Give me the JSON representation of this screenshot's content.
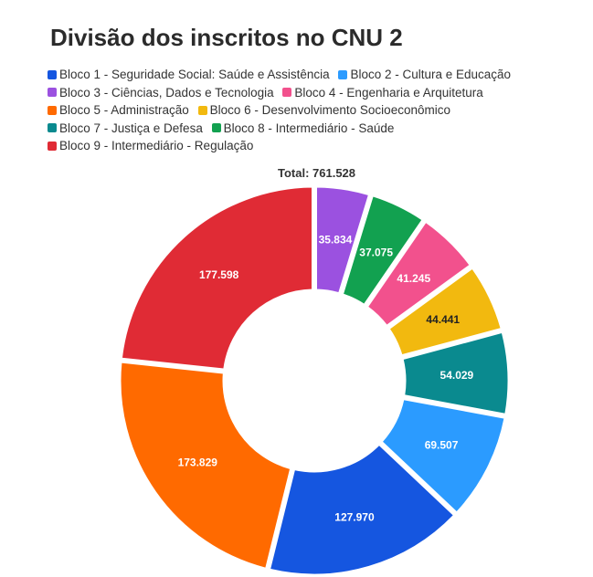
{
  "title": "Divisão dos inscritos no CNU 2",
  "total_label": "Total: 761.528",
  "chart_data": {
    "type": "pie",
    "variant": "donut",
    "title": "Divisão dos inscritos no CNU 2",
    "total": "Total: 761.528",
    "legend_position": "top",
    "slices": [
      {
        "name": "Bloco 3 - Ciências, Dados e Tecnologia",
        "value": 35834,
        "label": "35.834",
        "color": "#9b51e0",
        "label_color": "#ffffff"
      },
      {
        "name": "Bloco 8 - Intermediário - Saúde",
        "value": 37075,
        "label": "37.075",
        "color": "#12a150",
        "label_color": "#ffffff"
      },
      {
        "name": "Bloco 4 - Engenharia e Arquitetura",
        "value": 41245,
        "label": "41.245",
        "color": "#f2518d",
        "label_color": "#ffffff"
      },
      {
        "name": "Bloco 6 - Desenvolvimento Socioeconômico",
        "value": 44441,
        "label": "44.441",
        "color": "#f2b90f",
        "label_color": "#222222"
      },
      {
        "name": "Bloco 7 - Justiça e Defesa",
        "value": 54029,
        "label": "54.029",
        "color": "#0a8a8f",
        "label_color": "#ffffff"
      },
      {
        "name": "Bloco 2 - Cultura e Educação",
        "value": 69507,
        "label": "69.507",
        "color": "#2b9bff",
        "label_color": "#ffffff"
      },
      {
        "name": "Bloco 1 - Seguridade Social: Saúde e Assistência",
        "value": 127970,
        "label": "127.970",
        "color": "#1556e0",
        "label_color": "#ffffff"
      },
      {
        "name": "Bloco 5 - Administração",
        "value": 173829,
        "label": "173.829",
        "color": "#ff6a00",
        "label_color": "#ffffff"
      },
      {
        "name": "Bloco 9 - Intermediário - Regulação",
        "value": 177598,
        "label": "177.598",
        "color": "#e02b35",
        "label_color": "#ffffff"
      }
    ]
  },
  "legend": [
    {
      "label": "Bloco 1 - Seguridade Social: Saúde e Assistência",
      "color": "#1556e0"
    },
    {
      "label": "Bloco 2 - Cultura e Educação",
      "color": "#2b9bff"
    },
    {
      "label": "Bloco 3 - Ciências, Dados e Tecnologia",
      "color": "#9b51e0"
    },
    {
      "label": "Bloco 4 - Engenharia e Arquitetura",
      "color": "#f2518d"
    },
    {
      "label": "Bloco 5 - Administração",
      "color": "#ff6a00"
    },
    {
      "label": "Bloco 6 - Desenvolvimento Socioeconômico",
      "color": "#f2b90f"
    },
    {
      "label": "Bloco 7 - Justiça e Defesa",
      "color": "#0a8a8f"
    },
    {
      "label": "Bloco 8 - Intermediário - Saúde",
      "color": "#12a150"
    },
    {
      "label": "Bloco 9 - Intermediário - Regulação",
      "color": "#e02b35"
    }
  ]
}
